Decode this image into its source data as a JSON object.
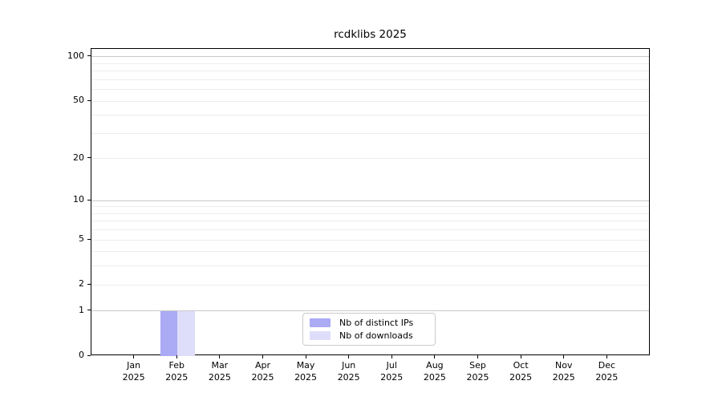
{
  "chart_data": {
    "type": "bar",
    "title": "rcdklibs 2025",
    "categories": [
      "Jan 2025",
      "Feb 2025",
      "Mar 2025",
      "Apr 2025",
      "May 2025",
      "Jun 2025",
      "Jul 2025",
      "Aug 2025",
      "Sep 2025",
      "Oct 2025",
      "Nov 2025",
      "Dec 2025"
    ],
    "series": [
      {
        "name": "Nb of distinct IPs",
        "color": "#aaaaf5",
        "values": [
          0,
          1,
          0,
          0,
          0,
          0,
          0,
          0,
          0,
          0,
          0,
          0
        ]
      },
      {
        "name": "Nb of downloads",
        "color": "#dedefb",
        "values": [
          0,
          1,
          0,
          0,
          0,
          0,
          0,
          0,
          0,
          0,
          0,
          0
        ]
      }
    ],
    "yscale": "log1p",
    "ylim": [
      0,
      113
    ],
    "yticks": [
      100,
      50,
      20,
      10,
      5,
      2,
      1,
      0
    ],
    "gridlines": {
      "major": [
        1,
        10,
        100
      ],
      "minor": [
        2,
        3,
        4,
        5,
        6,
        7,
        8,
        9,
        20,
        30,
        40,
        50,
        60,
        70,
        80,
        90
      ]
    },
    "grid": "horizontal",
    "xlabel": "",
    "ylabel": "",
    "legend_position": "bottom-center",
    "colors": {
      "axis": "#000000",
      "grid_minor": "#ededed",
      "grid_major": "#c9c9c9",
      "background": "#ffffff"
    }
  }
}
